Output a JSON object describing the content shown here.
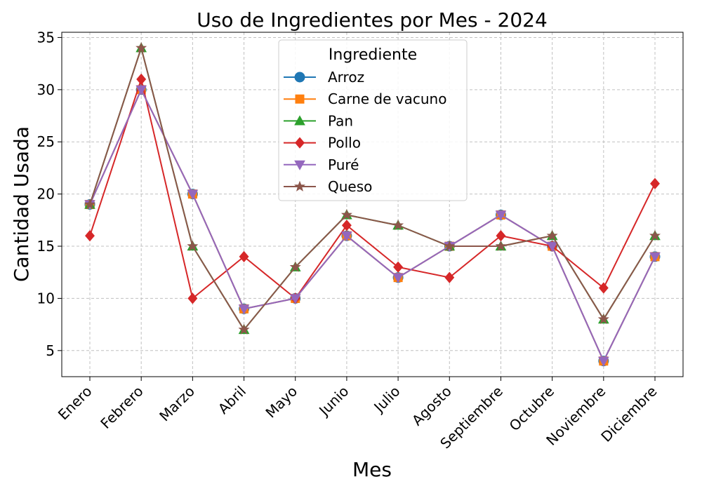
{
  "chart_data": {
    "type": "line",
    "title": "Uso de Ingredientes por Mes - 2024",
    "xlabel": "Mes",
    "ylabel": "Cantidad Usada",
    "categories": [
      "Enero",
      "Febrero",
      "Marzo",
      "Abril",
      "Mayo",
      "Junio",
      "Julio",
      "Agosto",
      "Septiembre",
      "Octubre",
      "Noviembre",
      "Diciembre"
    ],
    "ylim": [
      2.5,
      35.5
    ],
    "yticks": [
      5,
      10,
      15,
      20,
      25,
      30,
      35
    ],
    "grid": true,
    "legend": {
      "title": "Ingrediente",
      "placement": "top-center"
    },
    "series": [
      {
        "name": "Arroz",
        "color": "#1f77b4",
        "marker": "circle",
        "values": [
          19,
          30,
          20,
          9,
          10,
          16,
          12,
          15,
          18,
          15,
          4,
          14
        ]
      },
      {
        "name": "Carne de vacuno",
        "color": "#ff7f0e",
        "marker": "square",
        "values": [
          19,
          30,
          20,
          9,
          10,
          16,
          12,
          15,
          18,
          15,
          4,
          14
        ]
      },
      {
        "name": "Pan",
        "color": "#2ca02c",
        "marker": "triangle-up",
        "values": [
          19,
          34,
          15,
          7,
          13,
          18,
          17,
          15,
          15,
          16,
          8,
          16
        ]
      },
      {
        "name": "Pollo",
        "color": "#d62728",
        "marker": "diamond",
        "values": [
          16,
          31,
          10,
          14,
          10,
          17,
          13,
          12,
          16,
          15,
          11,
          21
        ]
      },
      {
        "name": "Puré",
        "color": "#9467bd",
        "marker": "triangle-down",
        "values": [
          19,
          30,
          20,
          9,
          10,
          16,
          12,
          15,
          18,
          15,
          4,
          14
        ]
      },
      {
        "name": "Queso",
        "color": "#8c564b",
        "marker": "star",
        "values": [
          19,
          34,
          15,
          7,
          13,
          18,
          17,
          15,
          15,
          16,
          8,
          16
        ]
      }
    ]
  }
}
